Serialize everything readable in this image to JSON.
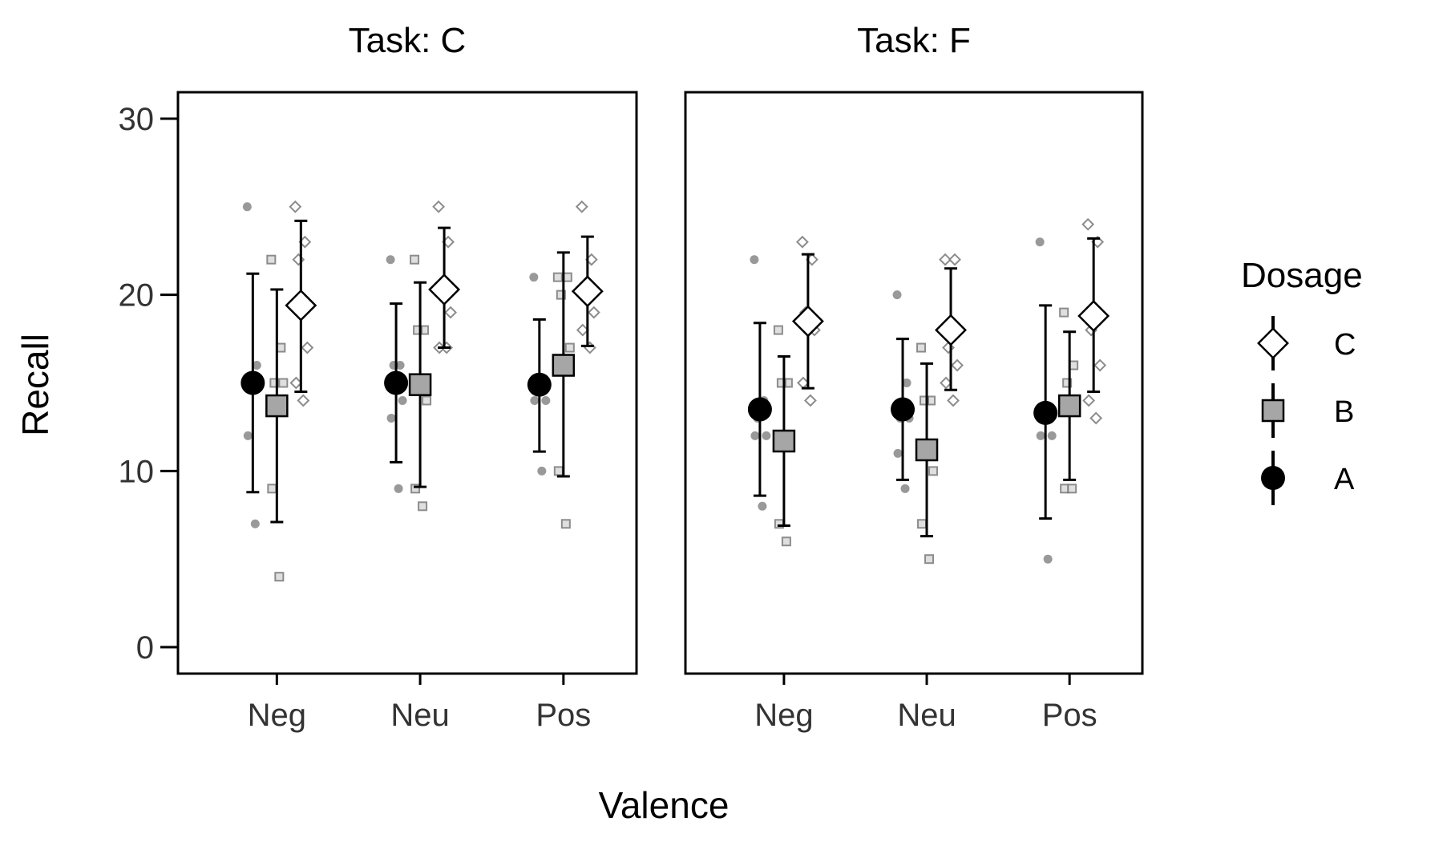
{
  "chart_data": {
    "type": "scatter",
    "xlabel": "Valence",
    "ylabel": "Recall",
    "ylim": [
      -1.5,
      31.5
    ],
    "yticks": [
      0,
      10,
      20,
      30
    ],
    "categories": [
      "Neg",
      "Neu",
      "Pos"
    ],
    "grid": false,
    "legend": {
      "title": "Dosage",
      "placement": "right",
      "order": [
        "C",
        "B",
        "A"
      ]
    },
    "series_style": {
      "A": {
        "marker": "circle",
        "fill": "#000000",
        "raw_color": "#808080"
      },
      "B": {
        "marker": "square",
        "fill": "#a6a6a6",
        "raw_color": "#8c8c8c"
      },
      "C": {
        "marker": "diamond",
        "fill": "#ffffff",
        "raw_color": "#8c8c8c"
      }
    },
    "panels": [
      {
        "title": "Task: C",
        "summary": [
          {
            "dosage": "A",
            "valence": "Neg",
            "mean": 15.0,
            "lower": 8.8,
            "upper": 21.2
          },
          {
            "dosage": "B",
            "valence": "Neg",
            "mean": 13.7,
            "lower": 7.1,
            "upper": 20.3
          },
          {
            "dosage": "C",
            "valence": "Neg",
            "mean": 19.4,
            "lower": 14.5,
            "upper": 24.2
          },
          {
            "dosage": "A",
            "valence": "Neu",
            "mean": 15.0,
            "lower": 10.5,
            "upper": 19.5
          },
          {
            "dosage": "B",
            "valence": "Neu",
            "mean": 14.9,
            "lower": 9.1,
            "upper": 20.7
          },
          {
            "dosage": "C",
            "valence": "Neu",
            "mean": 20.3,
            "lower": 17.0,
            "upper": 23.8
          },
          {
            "dosage": "A",
            "valence": "Pos",
            "mean": 14.9,
            "lower": 11.1,
            "upper": 18.6
          },
          {
            "dosage": "B",
            "valence": "Pos",
            "mean": 16.0,
            "lower": 9.7,
            "upper": 22.4
          },
          {
            "dosage": "C",
            "valence": "Pos",
            "mean": 20.2,
            "lower": 17.1,
            "upper": 23.3
          }
        ],
        "raw": [
          {
            "dosage": "A",
            "valence": "Neg",
            "values": [
              25,
              16,
              15,
              15,
              12,
              7
            ]
          },
          {
            "dosage": "B",
            "valence": "Neg",
            "values": [
              22,
              17,
              15,
              15,
              9,
              4
            ]
          },
          {
            "dosage": "C",
            "valence": "Neg",
            "values": [
              25,
              23,
              22,
              17,
              15,
              14
            ]
          },
          {
            "dosage": "A",
            "valence": "Neu",
            "values": [
              22,
              16,
              16,
              14,
              13,
              9
            ]
          },
          {
            "dosage": "B",
            "valence": "Neu",
            "values": [
              22,
              18,
              18,
              14,
              9,
              8
            ]
          },
          {
            "dosage": "C",
            "valence": "Neu",
            "values": [
              25,
              23,
              20,
              19,
              17,
              17
            ]
          },
          {
            "dosage": "A",
            "valence": "Pos",
            "values": [
              21,
              15,
              15,
              14,
              14,
              10
            ]
          },
          {
            "dosage": "B",
            "valence": "Pos",
            "values": [
              21,
              21,
              20,
              17,
              10,
              7
            ]
          },
          {
            "dosage": "C",
            "valence": "Pos",
            "values": [
              25,
              22,
              20,
              19,
              18,
              17
            ]
          }
        ]
      },
      {
        "title": "Task: F",
        "summary": [
          {
            "dosage": "A",
            "valence": "Neg",
            "mean": 13.5,
            "lower": 8.6,
            "upper": 18.4
          },
          {
            "dosage": "B",
            "valence": "Neg",
            "mean": 11.7,
            "lower": 6.9,
            "upper": 16.5
          },
          {
            "dosage": "C",
            "valence": "Neg",
            "mean": 18.5,
            "lower": 14.7,
            "upper": 22.3
          },
          {
            "dosage": "A",
            "valence": "Neu",
            "mean": 13.5,
            "lower": 9.5,
            "upper": 17.5
          },
          {
            "dosage": "B",
            "valence": "Neu",
            "mean": 11.2,
            "lower": 6.3,
            "upper": 16.1
          },
          {
            "dosage": "C",
            "valence": "Neu",
            "mean": 18.0,
            "lower": 14.6,
            "upper": 21.5
          },
          {
            "dosage": "A",
            "valence": "Pos",
            "mean": 13.3,
            "lower": 7.3,
            "upper": 19.4
          },
          {
            "dosage": "B",
            "valence": "Pos",
            "mean": 13.7,
            "lower": 9.5,
            "upper": 17.9
          },
          {
            "dosage": "C",
            "valence": "Pos",
            "mean": 18.8,
            "lower": 14.5,
            "upper": 23.2
          }
        ],
        "raw": [
          {
            "dosage": "A",
            "valence": "Neg",
            "values": [
              22,
              14,
              13,
              12,
              12,
              8
            ]
          },
          {
            "dosage": "B",
            "valence": "Neg",
            "values": [
              18,
              15,
              15,
              12,
              7,
              6
            ]
          },
          {
            "dosage": "C",
            "valence": "Neg",
            "values": [
              23,
              22,
              19,
              18,
              15,
              14
            ]
          },
          {
            "dosage": "A",
            "valence": "Neu",
            "values": [
              20,
              15,
              13,
              13,
              11,
              9
            ]
          },
          {
            "dosage": "B",
            "valence": "Neu",
            "values": [
              17,
              14,
              14,
              10,
              7,
              5
            ]
          },
          {
            "dosage": "C",
            "valence": "Neu",
            "values": [
              22,
              22,
              17,
              16,
              15,
              14
            ]
          },
          {
            "dosage": "A",
            "valence": "Pos",
            "values": [
              23,
              13,
              13,
              12,
              12,
              5
            ]
          },
          {
            "dosage": "B",
            "valence": "Pos",
            "values": [
              19,
              16,
              15,
              14,
              9,
              9
            ]
          },
          {
            "dosage": "C",
            "valence": "Pos",
            "values": [
              24,
              23,
              18,
              16,
              14,
              13
            ]
          }
        ]
      }
    ]
  }
}
